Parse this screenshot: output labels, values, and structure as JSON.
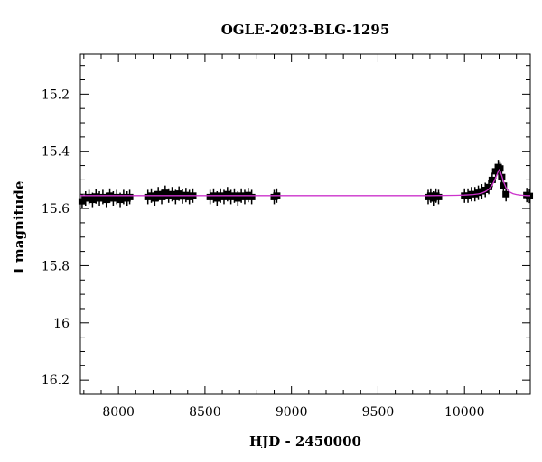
{
  "chart_data": {
    "type": "scatter",
    "title": "OGLE-2023-BLG-1295",
    "xlabel": "HJD - 2450000",
    "ylabel": "I magnitude",
    "xlim": [
      7780,
      10380
    ],
    "ylim": [
      16.25,
      15.06
    ],
    "y_inverted": true,
    "xticks": [
      8000,
      8500,
      9000,
      9500,
      10000
    ],
    "xtick_labels": [
      "8000",
      "8500",
      "9000",
      "9500",
      "10000"
    ],
    "yticks": [
      15.2,
      15.4,
      15.6,
      15.8,
      16,
      16.2
    ],
    "ytick_labels": [
      "15.2",
      "15.4",
      "15.6",
      "15.8",
      "16",
      "16.2"
    ],
    "grid": false,
    "colors": {
      "data": "#000000",
      "model": "#cc33cc"
    },
    "series": [
      {
        "kind": "observations",
        "segments": [
          {
            "x": [
              7790,
              7810,
              7830,
              7850,
              7870,
              7890,
              7910,
              7930,
              7950,
              7970,
              7990,
              8010,
              8030,
              8050,
              8065
            ],
            "y": [
              15.575,
              15.565,
              15.56,
              15.57,
              15.558,
              15.565,
              15.56,
              15.57,
              15.555,
              15.565,
              15.56,
              15.57,
              15.56,
              15.565,
              15.56
            ]
          },
          {
            "x": [
              8170,
              8190,
              8210,
              8230,
              8250,
              8270,
              8290,
              8310,
              8330,
              8350,
              8370,
              8390,
              8410,
              8430
            ],
            "y": [
              15.56,
              15.555,
              15.565,
              15.55,
              15.56,
              15.545,
              15.555,
              15.55,
              15.56,
              15.548,
              15.558,
              15.553,
              15.56,
              15.555
            ]
          },
          {
            "x": [
              8530,
              8550,
              8570,
              8590,
              8610,
              8630,
              8650,
              8670,
              8690,
              8710,
              8730,
              8750,
              8770
            ],
            "y": [
              15.56,
              15.555,
              15.565,
              15.555,
              15.56,
              15.55,
              15.56,
              15.555,
              15.565,
              15.555,
              15.56,
              15.553,
              15.56
            ]
          },
          {
            "x": [
              8900,
              8915
            ],
            "y": [
              15.56,
              15.555
            ]
          },
          {
            "x": [
              9790,
              9805,
              9820,
              9835,
              9850
            ],
            "y": [
              15.56,
              15.555,
              15.565,
              15.555,
              15.56
            ]
          },
          {
            "x": [
              10000,
              10020,
              10040,
              10060,
              10080,
              10100,
              10120,
              10140,
              10160,
              10180,
              10195,
              10205,
              10215,
              10225,
              10240
            ],
            "y": [
              15.555,
              15.555,
              15.55,
              15.55,
              15.545,
              15.54,
              15.535,
              15.525,
              15.5,
              15.47,
              15.455,
              15.46,
              15.49,
              15.52,
              15.55
            ]
          },
          {
            "x": [
              10360,
              10375
            ],
            "y": [
              15.553,
              15.556
            ]
          }
        ]
      },
      {
        "kind": "model",
        "x": [
          7780,
          9800,
          9950,
          10000,
          10050,
          10080,
          10100,
          10120,
          10140,
          10160,
          10175,
          10185,
          10195,
          10200,
          10205,
          10215,
          10225,
          10240,
          10260,
          10280,
          10300,
          10320,
          10340,
          10360,
          10380
        ],
        "y": [
          15.555,
          15.555,
          15.554,
          15.553,
          15.551,
          15.549,
          15.546,
          15.541,
          15.533,
          15.518,
          15.5,
          15.485,
          15.47,
          15.465,
          15.47,
          15.485,
          15.505,
          15.528,
          15.542,
          15.548,
          15.551,
          15.553,
          15.554,
          15.555,
          15.555
        ]
      }
    ]
  }
}
